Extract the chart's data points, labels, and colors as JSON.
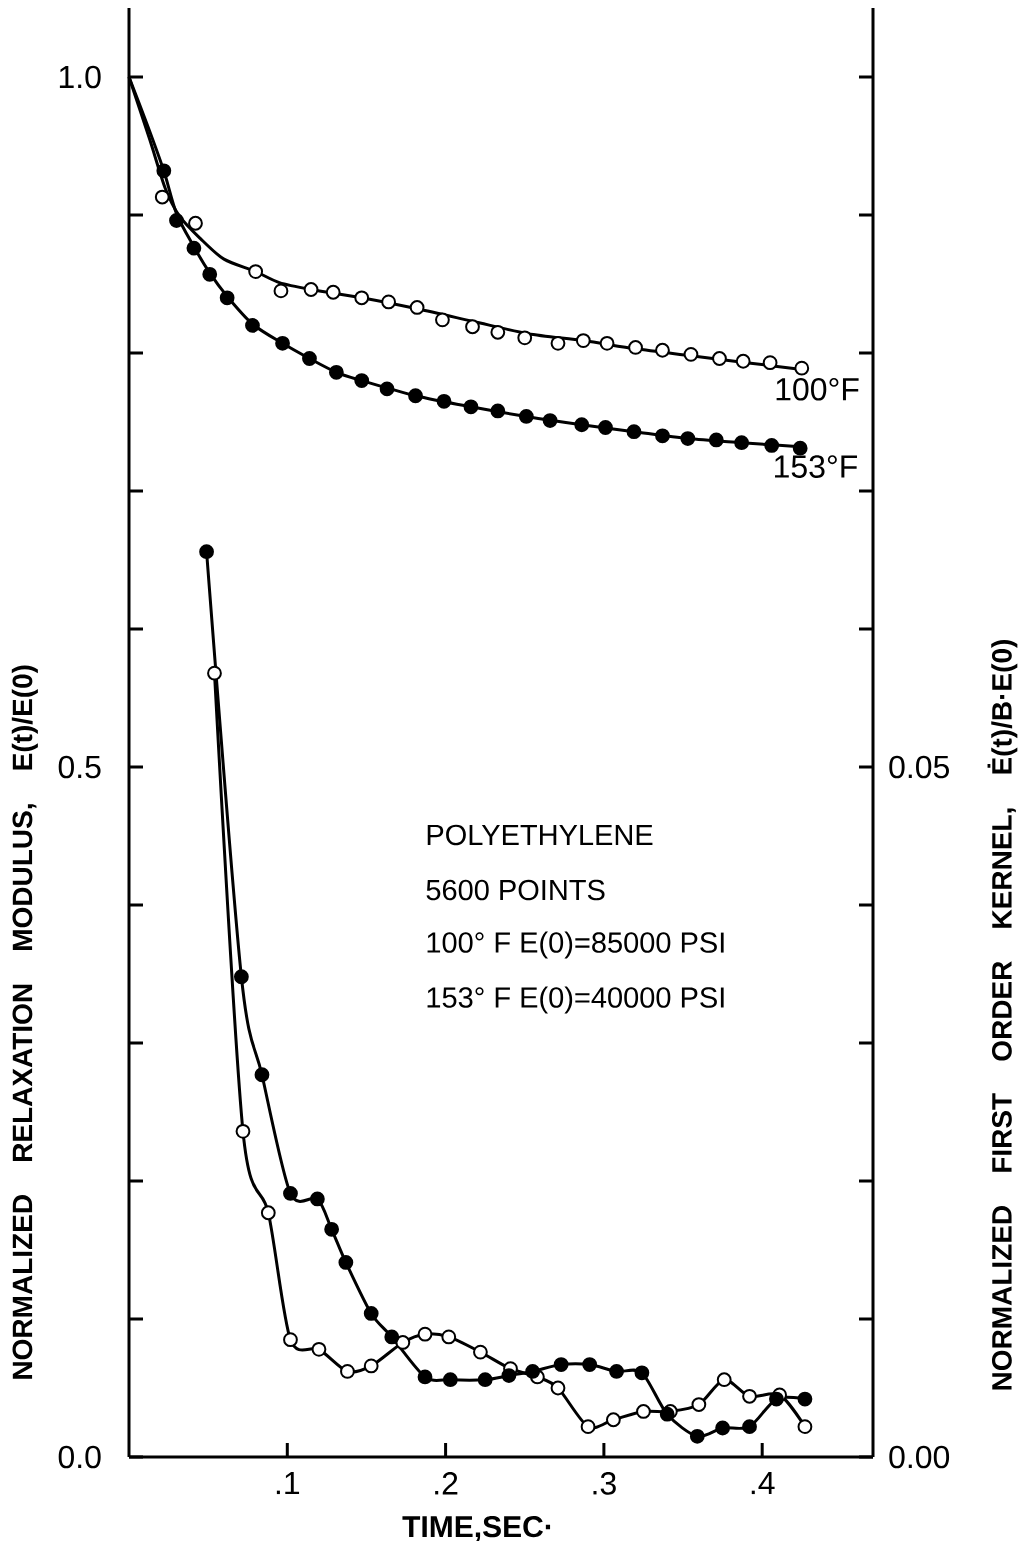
{
  "chart_data": {
    "type": "line",
    "xlabel": "TIME,SEC·",
    "ylabel": "NORMALIZED RELAXATION MODULUS, E(t)/E(0)",
    "y2label": "NORMALIZED FIRST ORDER KERNEL, Ė(t)/B·E(0)",
    "annotations": [
      "POLYETHYLENE",
      "5600 POINTS",
      "100° F E(0)=85000 PSI",
      "153° F E(0)=40000 PSI"
    ],
    "xlim": [
      0,
      0.47
    ],
    "ylim": [
      0,
      1.05
    ],
    "y2lim": [
      0,
      0.105
    ],
    "xticks": [
      {
        "value": 0.1,
        "label": ".1"
      },
      {
        "value": 0.2,
        "label": ".2"
      },
      {
        "value": 0.3,
        "label": ".3"
      },
      {
        "value": 0.4,
        "label": ".4"
      }
    ],
    "yticks": [
      {
        "value": 0,
        "label": "0.0"
      },
      {
        "value": 0.1,
        "label": null
      },
      {
        "value": 0.2,
        "label": null
      },
      {
        "value": 0.3,
        "label": null
      },
      {
        "value": 0.4,
        "label": null
      },
      {
        "value": 0.5,
        "label": "0.5"
      },
      {
        "value": 0.6,
        "label": null
      },
      {
        "value": 0.7,
        "label": null
      },
      {
        "value": 0.8,
        "label": null
      },
      {
        "value": 0.9,
        "label": null
      },
      {
        "value": 1.0,
        "label": "1.0"
      }
    ],
    "y2ticks": [
      {
        "value": 0,
        "label": "0.00"
      },
      {
        "value": 0.01,
        "label": null
      },
      {
        "value": 0.02,
        "label": null
      },
      {
        "value": 0.03,
        "label": null
      },
      {
        "value": 0.04,
        "label": null
      },
      {
        "value": 0.05,
        "label": "0.05"
      },
      {
        "value": 0.06,
        "label": null
      },
      {
        "value": 0.07,
        "label": null
      },
      {
        "value": 0.08,
        "label": null
      },
      {
        "value": 0.09,
        "label": null
      },
      {
        "value": 0.1,
        "label": null
      }
    ],
    "series": [
      {
        "name": "100°F",
        "color": "#000000",
        "x": [
          0,
          0.013,
          0.023,
          0.032,
          0.045,
          0.06,
          0.08,
          0.095,
          0.115,
          0.147,
          0.182,
          0.217,
          0.252,
          0.287,
          0.32,
          0.355,
          0.39,
          0.425
        ],
        "values": [
          1.0,
          0.955,
          0.919,
          0.899,
          0.883,
          0.868,
          0.859,
          0.851,
          0.846,
          0.84,
          0.832,
          0.823,
          0.814,
          0.809,
          0.803,
          0.798,
          0.793,
          0.788
        ]
      },
      {
        "type": "scatter",
        "marker": "circle",
        "color": "#ffffff",
        "x": [
          0.021,
          0.042,
          0.08,
          0.096,
          0.115,
          0.129,
          0.147,
          0.164,
          0.182,
          0.198,
          0.217,
          0.233,
          0.25,
          0.271,
          0.287,
          0.302,
          0.32,
          0.337,
          0.355,
          0.373,
          0.388,
          0.405,
          0.425
        ],
        "values": [
          0.913,
          0.894,
          0.859,
          0.845,
          0.846,
          0.844,
          0.84,
          0.837,
          0.833,
          0.824,
          0.819,
          0.815,
          0.811,
          0.807,
          0.809,
          0.807,
          0.804,
          0.802,
          0.799,
          0.796,
          0.794,
          0.793,
          0.789
        ]
      },
      {
        "name": "153°F",
        "color": "#000000",
        "x": [
          0,
          0.012,
          0.022,
          0.03,
          0.041,
          0.051,
          0.062,
          0.078,
          0.097,
          0.114,
          0.131,
          0.147,
          0.181,
          0.216,
          0.251,
          0.286,
          0.319,
          0.353,
          0.387,
          0.424
        ],
        "values": [
          1.0,
          0.964,
          0.932,
          0.901,
          0.877,
          0.858,
          0.841,
          0.821,
          0.807,
          0.796,
          0.786,
          0.78,
          0.769,
          0.761,
          0.754,
          0.748,
          0.743,
          0.738,
          0.735,
          0.732
        ]
      },
      {
        "type": "scatter",
        "marker": "circle",
        "color": "#000000",
        "x": [
          0.022,
          0.03,
          0.041,
          0.051,
          0.062,
          0.078,
          0.097,
          0.114,
          0.131,
          0.147,
          0.163,
          0.181,
          0.199,
          0.216,
          0.233,
          0.251,
          0.266,
          0.286,
          0.301,
          0.319,
          0.337,
          0.353,
          0.371,
          0.387,
          0.406,
          0.424
        ],
        "values": [
          0.932,
          0.896,
          0.876,
          0.857,
          0.84,
          0.82,
          0.807,
          0.796,
          0.786,
          0.78,
          0.774,
          0.769,
          0.765,
          0.761,
          0.758,
          0.754,
          0.751,
          0.748,
          0.746,
          0.743,
          0.74,
          0.738,
          0.737,
          0.735,
          0.733,
          0.731
        ]
      },
      {
        "axis": "y2",
        "color": "#000000",
        "x": [
          0.054,
          0.072,
          0.088,
          0.102,
          0.12,
          0.138,
          0.153,
          0.173,
          0.187,
          0.202,
          0.222,
          0.241,
          0.258,
          0.271,
          0.29,
          0.306,
          0.325,
          0.342,
          0.36,
          0.376,
          0.392,
          0.411,
          0.427
        ],
        "values": [
          0.0568,
          0.0236,
          0.0177,
          0.0085,
          0.0078,
          0.0062,
          0.0066,
          0.0083,
          0.0089,
          0.0087,
          0.0076,
          0.0064,
          0.0058,
          0.005,
          0.0022,
          0.0027,
          0.0033,
          0.0033,
          0.0038,
          0.0056,
          0.0044,
          0.0045,
          0.0022
        ]
      },
      {
        "axis": "y2",
        "color": "#000000",
        "x": [
          0.049,
          0.071,
          0.084,
          0.102,
          0.119,
          0.128,
          0.137,
          0.153,
          0.166,
          0.187,
          0.203,
          0.225,
          0.24,
          0.255,
          0.273,
          0.291,
          0.308,
          0.324,
          0.34,
          0.359,
          0.375,
          0.392,
          0.409,
          0.427
        ],
        "values": [
          0.0656,
          0.0348,
          0.0277,
          0.0191,
          0.0187,
          0.0165,
          0.0141,
          0.0104,
          0.0087,
          0.0058,
          0.0056,
          0.0056,
          0.0059,
          0.0062,
          0.0067,
          0.0067,
          0.0062,
          0.0061,
          0.0031,
          0.0015,
          0.0021,
          0.0022,
          0.0042,
          0.0042
        ]
      },
      {
        "type": "scatter",
        "axis": "y2",
        "marker": "circle",
        "color": "#ffffff",
        "x": [
          0.054,
          0.072,
          0.088,
          0.102,
          0.12,
          0.138,
          0.153,
          0.173,
          0.187,
          0.202,
          0.222,
          0.241,
          0.258,
          0.271,
          0.29,
          0.306,
          0.325,
          0.342,
          0.36,
          0.376,
          0.392,
          0.411,
          0.427
        ],
        "values": [
          0.0568,
          0.0236,
          0.0177,
          0.0085,
          0.0078,
          0.0062,
          0.0066,
          0.0083,
          0.0089,
          0.0087,
          0.0076,
          0.0064,
          0.0058,
          0.005,
          0.0022,
          0.0027,
          0.0033,
          0.0033,
          0.0038,
          0.0056,
          0.0044,
          0.0045,
          0.0022
        ]
      },
      {
        "type": "scatter",
        "axis": "y2",
        "marker": "circle",
        "color": "#000000",
        "x": [
          0.049,
          0.071,
          0.084,
          0.102,
          0.119,
          0.128,
          0.137,
          0.153,
          0.166,
          0.187,
          0.203,
          0.225,
          0.24,
          0.255,
          0.273,
          0.291,
          0.308,
          0.324,
          0.34,
          0.359,
          0.375,
          0.392,
          0.409,
          0.427
        ],
        "values": [
          0.0656,
          0.0348,
          0.0277,
          0.0191,
          0.0187,
          0.0165,
          0.0141,
          0.0104,
          0.0087,
          0.0058,
          0.0056,
          0.0056,
          0.0059,
          0.0062,
          0.0067,
          0.0067,
          0.0062,
          0.0061,
          0.0031,
          0.0015,
          0.0021,
          0.0022,
          0.0042,
          0.0042
        ]
      }
    ]
  }
}
